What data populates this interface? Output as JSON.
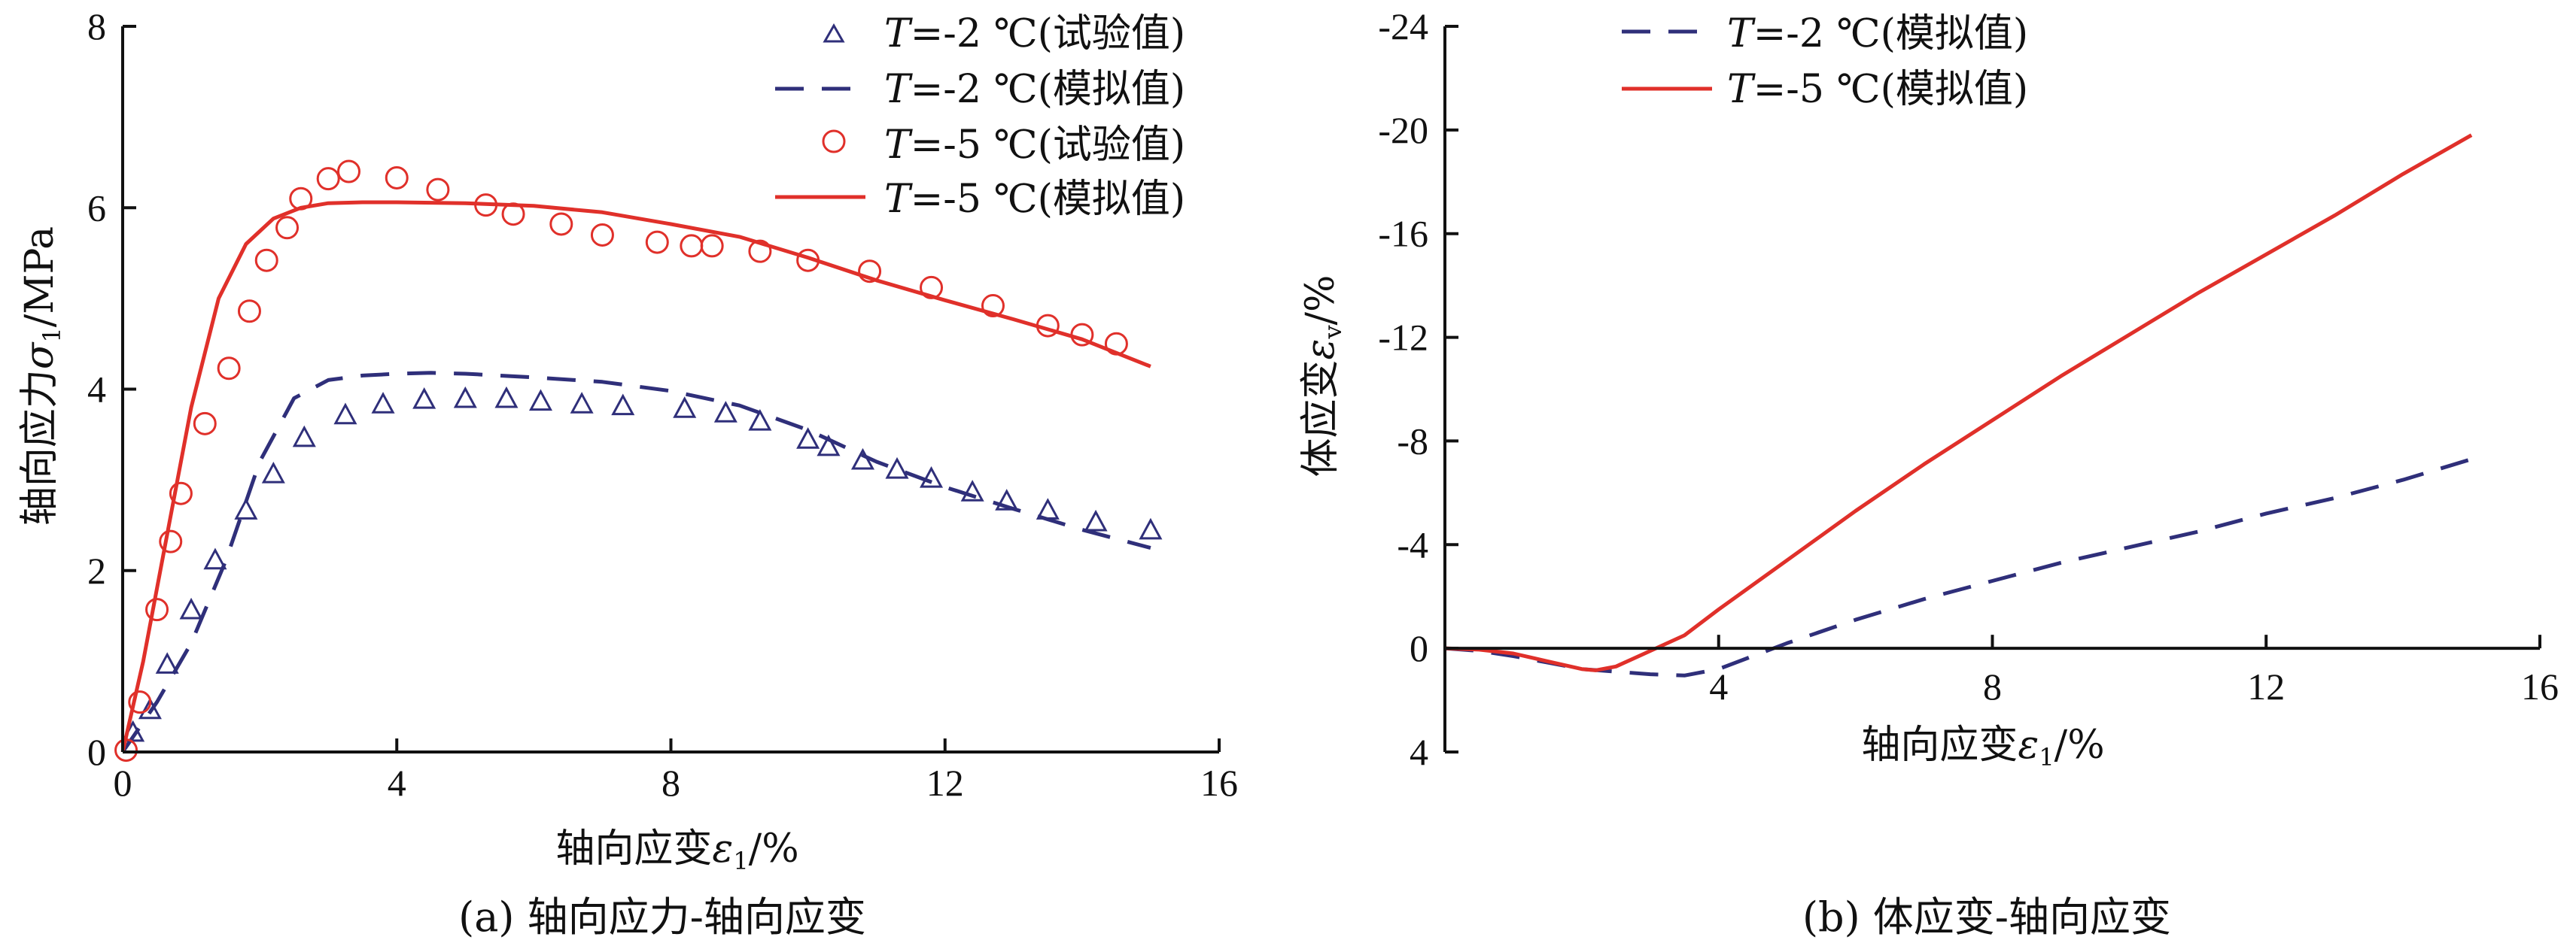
{
  "colors": {
    "navy": "#2f2f7a",
    "red": "#e0302a",
    "axis": "#111111"
  },
  "legend_parts": {
    "italic_T": "T",
    "suffix_exp": "=-2 ℃(试验值)",
    "suffix_sim": "=-2 ℃(模拟值)",
    "suffix_exp5": "=-5 ℃(试验值)",
    "suffix_sim5": "=-5 ℃(模拟值)"
  },
  "chart_data": [
    {
      "type": "line",
      "caption": "(a) 轴向应力-轴向应变",
      "xlabel_text": "轴向应变",
      "xlabel_symbol": "ε",
      "xlabel_sub": "1",
      "xlabel_unit": "/%",
      "ylabel_text": "轴向应力",
      "ylabel_symbol": "σ",
      "ylabel_sub": "1",
      "ylabel_unit": "/MPa",
      "xlim": [
        0,
        16
      ],
      "ylim": [
        0,
        8
      ],
      "xticks": [
        0,
        4,
        8,
        12,
        16
      ],
      "yticks": [
        0,
        2,
        4,
        6,
        8
      ],
      "legend_position": "top-right",
      "series": [
        {
          "name": "T=-2 ℃(试验值)",
          "style": "triangle",
          "color": "#2f2f7a",
          "points": [
            [
              0.15,
              0.2
            ],
            [
              0.4,
              0.45
            ],
            [
              0.65,
              0.95
            ],
            [
              1.0,
              1.55
            ],
            [
              1.35,
              2.1
            ],
            [
              1.8,
              2.65
            ],
            [
              2.2,
              3.05
            ],
            [
              2.65,
              3.45
            ],
            [
              3.25,
              3.7
            ],
            [
              3.8,
              3.82
            ],
            [
              4.4,
              3.87
            ],
            [
              5.0,
              3.88
            ],
            [
              5.6,
              3.88
            ],
            [
              6.1,
              3.85
            ],
            [
              6.7,
              3.82
            ],
            [
              7.3,
              3.8
            ],
            [
              8.2,
              3.77
            ],
            [
              8.8,
              3.72
            ],
            [
              9.3,
              3.63
            ],
            [
              10.0,
              3.43
            ],
            [
              10.3,
              3.35
            ],
            [
              10.8,
              3.2
            ],
            [
              11.3,
              3.1
            ],
            [
              11.8,
              3.0
            ],
            [
              12.4,
              2.85
            ],
            [
              12.9,
              2.75
            ],
            [
              13.5,
              2.65
            ],
            [
              14.2,
              2.52
            ],
            [
              15.0,
              2.43
            ]
          ]
        },
        {
          "name": "T=-2 ℃(模拟值)",
          "style": "dashed",
          "color": "#2f2f7a",
          "points": [
            [
              0,
              0
            ],
            [
              0.5,
              0.55
            ],
            [
              1.0,
              1.2
            ],
            [
              1.5,
              2.1
            ],
            [
              2.0,
              3.2
            ],
            [
              2.5,
              3.9
            ],
            [
              3.0,
              4.1
            ],
            [
              3.5,
              4.15
            ],
            [
              4.0,
              4.17
            ],
            [
              4.5,
              4.18
            ],
            [
              5.0,
              4.17
            ],
            [
              6.0,
              4.13
            ],
            [
              7.0,
              4.08
            ],
            [
              8.0,
              3.98
            ],
            [
              9.0,
              3.82
            ],
            [
              10.0,
              3.55
            ],
            [
              11.0,
              3.2
            ],
            [
              12.0,
              2.92
            ],
            [
              13.0,
              2.68
            ],
            [
              14.0,
              2.45
            ],
            [
              15.0,
              2.25
            ]
          ]
        },
        {
          "name": "T=-5 ℃(试验值)",
          "style": "circle",
          "color": "#e0302a",
          "points": [
            [
              0.05,
              0.02
            ],
            [
              0.25,
              0.55
            ],
            [
              0.5,
              1.57
            ],
            [
              0.7,
              2.32
            ],
            [
              0.85,
              2.85
            ],
            [
              1.2,
              3.62
            ],
            [
              1.55,
              4.23
            ],
            [
              1.85,
              4.86
            ],
            [
              2.1,
              5.42
            ],
            [
              2.4,
              5.78
            ],
            [
              2.6,
              6.1
            ],
            [
              3.0,
              6.32
            ],
            [
              3.3,
              6.4
            ],
            [
              4.0,
              6.33
            ],
            [
              4.6,
              6.2
            ],
            [
              5.3,
              6.03
            ],
            [
              5.7,
              5.93
            ],
            [
              6.4,
              5.82
            ],
            [
              7.0,
              5.7
            ],
            [
              7.8,
              5.62
            ],
            [
              8.3,
              5.58
            ],
            [
              8.6,
              5.58
            ],
            [
              9.3,
              5.52
            ],
            [
              10.0,
              5.42
            ],
            [
              10.9,
              5.3
            ],
            [
              11.8,
              5.12
            ],
            [
              12.7,
              4.92
            ],
            [
              13.5,
              4.7
            ],
            [
              14.0,
              4.6
            ],
            [
              14.5,
              4.5
            ]
          ]
        },
        {
          "name": "T=-5 ℃(模拟值)",
          "style": "solid",
          "color": "#e0302a",
          "points": [
            [
              0,
              0
            ],
            [
              0.3,
              1.0
            ],
            [
              0.6,
              2.2
            ],
            [
              1.0,
              3.8
            ],
            [
              1.4,
              5.0
            ],
            [
              1.8,
              5.6
            ],
            [
              2.2,
              5.88
            ],
            [
              2.6,
              6.0
            ],
            [
              3.0,
              6.05
            ],
            [
              3.5,
              6.06
            ],
            [
              4.0,
              6.06
            ],
            [
              5.0,
              6.05
            ],
            [
              6.0,
              6.02
            ],
            [
              7.0,
              5.95
            ],
            [
              8.0,
              5.82
            ],
            [
              9.0,
              5.68
            ],
            [
              10.0,
              5.45
            ],
            [
              11.0,
              5.2
            ],
            [
              12.0,
              4.98
            ],
            [
              13.0,
              4.77
            ],
            [
              14.0,
              4.55
            ],
            [
              15.0,
              4.25
            ]
          ]
        }
      ]
    },
    {
      "type": "line",
      "caption": "(b) 体应变-轴向应变",
      "xlabel_text": "轴向应变",
      "xlabel_symbol": "ε",
      "xlabel_sub": "1",
      "xlabel_unit": "/%",
      "ylabel_text": "体应变",
      "ylabel_symbol": "ε",
      "ylabel_sub": "v",
      "ylabel_unit": "/%",
      "xlim": [
        0,
        16
      ],
      "ylim": [
        4,
        -24
      ],
      "y_axis_inverted": true,
      "xticks": [
        4,
        8,
        12,
        16
      ],
      "yticks": [
        4,
        0,
        -4,
        -8,
        -12,
        -16,
        -20,
        -24
      ],
      "legend_position": "top-left",
      "series": [
        {
          "name": "T=-2 ℃(模拟值)",
          "style": "dashed",
          "color": "#2f2f7a",
          "points": [
            [
              0,
              0
            ],
            [
              0.5,
              0.1
            ],
            [
              1.0,
              0.3
            ],
            [
              1.5,
              0.55
            ],
            [
              2.0,
              0.8
            ],
            [
              2.5,
              0.9
            ],
            [
              3.0,
              1.0
            ],
            [
              3.5,
              1.05
            ],
            [
              4.0,
              0.8
            ],
            [
              4.5,
              0.3
            ],
            [
              5.0,
              -0.2
            ],
            [
              6.0,
              -1.1
            ],
            [
              7.0,
              -1.9
            ],
            [
              8.0,
              -2.6
            ],
            [
              9.0,
              -3.3
            ],
            [
              10.0,
              -3.9
            ],
            [
              11.0,
              -4.5
            ],
            [
              12.0,
              -5.2
            ],
            [
              13.0,
              -5.8
            ],
            [
              14.0,
              -6.5
            ],
            [
              15.0,
              -7.3
            ]
          ]
        },
        {
          "name": "T=-5 ℃(模拟值)",
          "style": "solid",
          "color": "#e0302a",
          "points": [
            [
              0,
              0
            ],
            [
              0.5,
              0.05
            ],
            [
              1.0,
              0.2
            ],
            [
              1.5,
              0.5
            ],
            [
              2.0,
              0.8
            ],
            [
              2.2,
              0.85
            ],
            [
              2.5,
              0.7
            ],
            [
              3.0,
              0.1
            ],
            [
              3.5,
              -0.5
            ],
            [
              4.0,
              -1.5
            ],
            [
              5.0,
              -3.4
            ],
            [
              6.0,
              -5.3
            ],
            [
              7.0,
              -7.1
            ],
            [
              8.0,
              -8.8
            ],
            [
              9.0,
              -10.5
            ],
            [
              10.0,
              -12.1
            ],
            [
              11.0,
              -13.7
            ],
            [
              12.0,
              -15.2
            ],
            [
              13.0,
              -16.7
            ],
            [
              14.0,
              -18.3
            ],
            [
              15.0,
              -19.8
            ]
          ]
        }
      ]
    }
  ]
}
